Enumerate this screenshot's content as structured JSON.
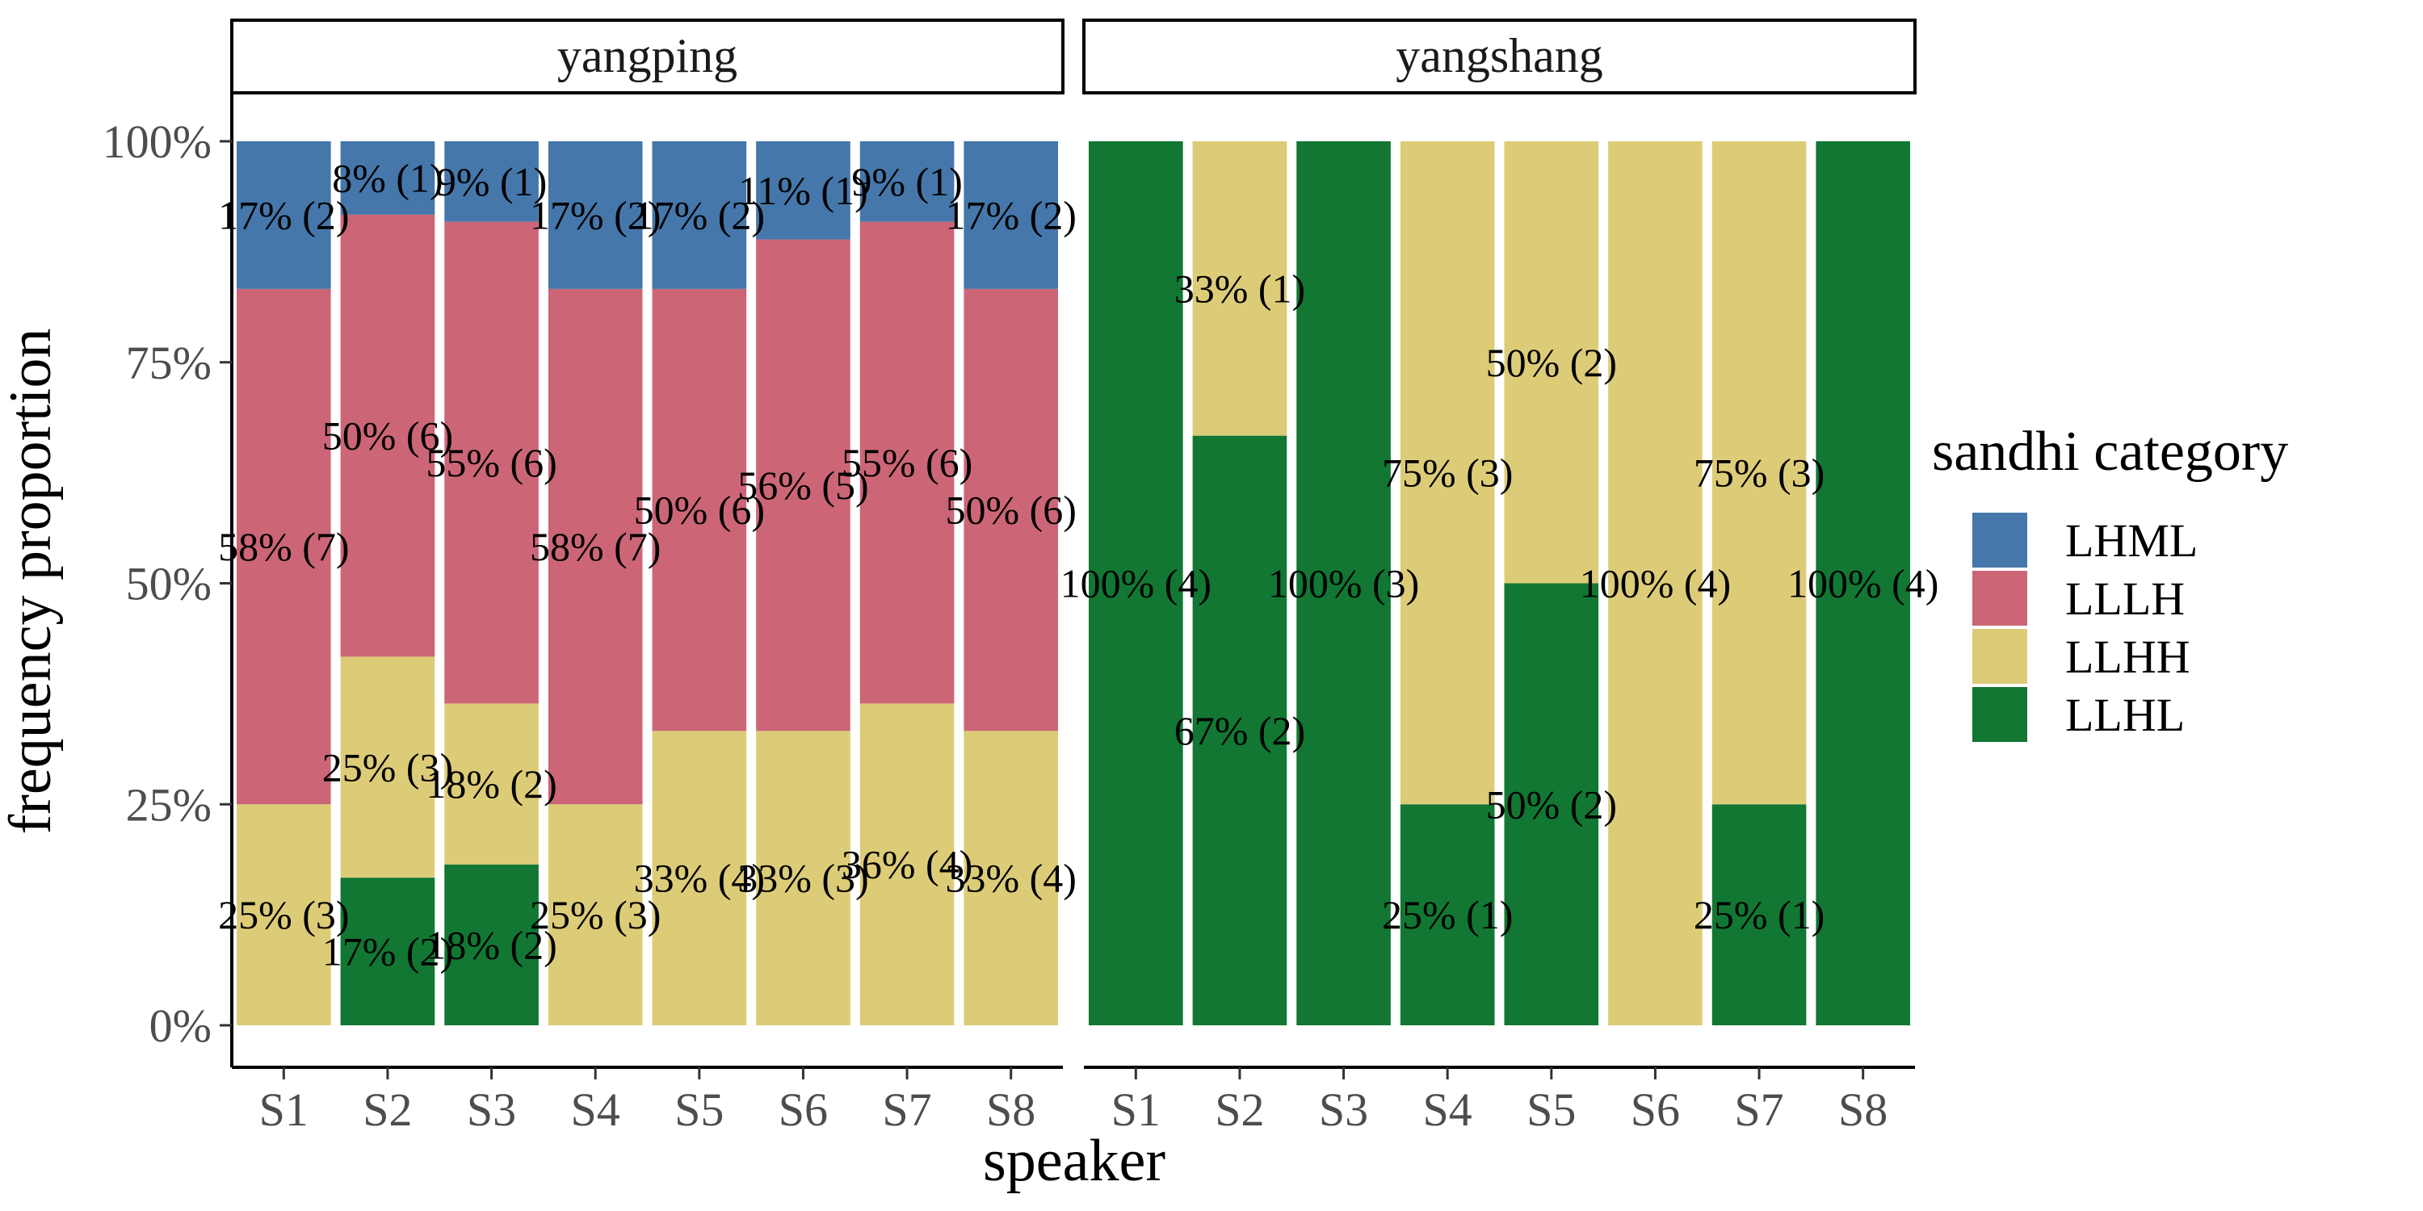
{
  "chart_data": {
    "type": "bar",
    "stacked": true,
    "xlabel": "speaker",
    "ylabel": "frequency proportion",
    "ylim": [
      0,
      1
    ],
    "y_ticks": [
      "0%",
      "25%",
      "50%",
      "75%",
      "100%"
    ],
    "y_tick_values": [
      0,
      0.25,
      0.5,
      0.75,
      1
    ],
    "categories": [
      "S1",
      "S2",
      "S3",
      "S4",
      "S5",
      "S6",
      "S7",
      "S8"
    ],
    "legend": {
      "title": "sandhi category",
      "placement": "right",
      "items": [
        {
          "name": "LHML",
          "color": "#4577AA"
        },
        {
          "name": "LLLH",
          "color": "#CC6677"
        },
        {
          "name": "LLHH",
          "color": "#DDCC77"
        },
        {
          "name": "LLHL",
          "color": "#117733"
        }
      ]
    },
    "stack_order_bottom_to_top": [
      "LLHL",
      "LLHH",
      "LLLH",
      "LHML"
    ],
    "facets": [
      {
        "name": "yangping",
        "series": [
          {
            "name": "LHML",
            "values": [
              0.167,
              0.083,
              0.091,
              0.167,
              0.167,
              0.111,
              0.091,
              0.167
            ],
            "labels": [
              "17% (2)",
              "8% (1)",
              "9% (1)",
              "17% (2)",
              "17% (2)",
              "11% (1)",
              "9% (1)",
              "17% (2)"
            ]
          },
          {
            "name": "LLLH",
            "values": [
              0.583,
              0.5,
              0.545,
              0.583,
              0.5,
              0.556,
              0.545,
              0.5
            ],
            "labels": [
              "58% (7)",
              "50% (6)",
              "55% (6)",
              "58% (7)",
              "50% (6)",
              "56% (5)",
              "55% (6)",
              "50% (6)"
            ]
          },
          {
            "name": "LLHH",
            "values": [
              0.25,
              0.25,
              0.182,
              0.25,
              0.333,
              0.333,
              0.364,
              0.333
            ],
            "labels": [
              "25% (3)",
              "25% (3)",
              "18% (2)",
              "25% (3)",
              "33% (4)",
              "33% (3)",
              "36% (4)",
              "33% (4)"
            ]
          },
          {
            "name": "LLHL",
            "values": [
              0,
              0.167,
              0.182,
              0,
              0,
              0,
              0,
              0
            ],
            "labels": [
              "",
              "17% (2)",
              "18% (2)",
              "",
              "",
              "",
              "",
              ""
            ]
          }
        ]
      },
      {
        "name": "yangshang",
        "series": [
          {
            "name": "LHML",
            "values": [
              0,
              0,
              0,
              0,
              0,
              0,
              0,
              0
            ],
            "labels": [
              "",
              "",
              "",
              "",
              "",
              "",
              "",
              ""
            ]
          },
          {
            "name": "LLLH",
            "values": [
              0,
              0,
              0,
              0,
              0,
              0,
              0,
              0
            ],
            "labels": [
              "",
              "",
              "",
              "",
              "",
              "",
              "",
              ""
            ]
          },
          {
            "name": "LLHH",
            "values": [
              0,
              0.333,
              0,
              0.75,
              0.5,
              1,
              0.75,
              0
            ],
            "labels": [
              "",
              "33% (1)",
              "",
              "75% (3)",
              "50% (2)",
              "100% (4)",
              "75% (3)",
              ""
            ]
          },
          {
            "name": "LLHL",
            "values": [
              1,
              0.667,
              1,
              0.25,
              0.5,
              0,
              0.25,
              1
            ],
            "labels": [
              "100% (4)",
              "67% (2)",
              "100% (3)",
              "25% (1)",
              "50% (2)",
              "",
              "25% (1)",
              "100% (4)"
            ]
          }
        ]
      }
    ]
  }
}
